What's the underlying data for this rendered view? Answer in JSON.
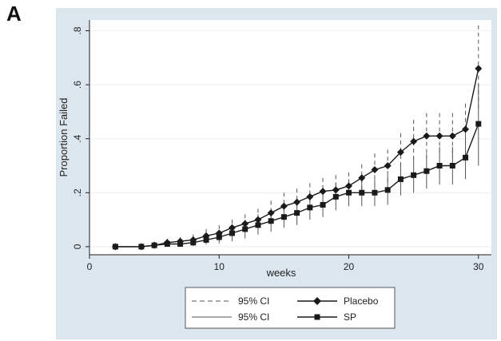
{
  "panel_label": "A",
  "chart_data": {
    "type": "line",
    "title": "",
    "xlabel": "weeks",
    "ylabel": "Proportion Failed",
    "xlim": [
      0,
      31
    ],
    "ylim": [
      -0.03,
      0.84
    ],
    "xticks": [
      0,
      10,
      20,
      30
    ],
    "xtick_labels": [
      "0",
      "10",
      "20",
      "30"
    ],
    "yticks": [
      0,
      0.2,
      0.4,
      0.6,
      0.8
    ],
    "ytick_labels": [
      "0",
      ".2",
      ".4",
      ".6",
      ".8"
    ],
    "grid": "horizontal",
    "legend_placement": "bottom",
    "colors": {
      "outer_background": "#dce6ee",
      "plot_background": "#ffffff",
      "series": "#1a1a1a",
      "ci": "#555555",
      "gridline": "#e8eef3"
    },
    "series": [
      {
        "name": "Placebo",
        "marker": "diamond",
        "points": [
          {
            "x": 2,
            "y": 0.0,
            "lo": 0.0,
            "hi": 0.0
          },
          {
            "x": 4,
            "y": 0.0,
            "lo": 0.0,
            "hi": 0.0
          },
          {
            "x": 5,
            "y": 0.005,
            "lo": 0.0,
            "hi": 0.01
          },
          {
            "x": 6,
            "y": 0.015,
            "lo": 0.0,
            "hi": 0.03
          },
          {
            "x": 7,
            "y": 0.02,
            "lo": 0.005,
            "hi": 0.035
          },
          {
            "x": 8,
            "y": 0.025,
            "lo": 0.008,
            "hi": 0.045
          },
          {
            "x": 9,
            "y": 0.04,
            "lo": 0.015,
            "hi": 0.065
          },
          {
            "x": 10,
            "y": 0.05,
            "lo": 0.02,
            "hi": 0.08
          },
          {
            "x": 11,
            "y": 0.07,
            "lo": 0.035,
            "hi": 0.1
          },
          {
            "x": 12,
            "y": 0.085,
            "lo": 0.05,
            "hi": 0.12
          },
          {
            "x": 13,
            "y": 0.1,
            "lo": 0.06,
            "hi": 0.14
          },
          {
            "x": 14,
            "y": 0.125,
            "lo": 0.085,
            "hi": 0.17
          },
          {
            "x": 15,
            "y": 0.15,
            "lo": 0.105,
            "hi": 0.2
          },
          {
            "x": 16,
            "y": 0.165,
            "lo": 0.12,
            "hi": 0.215
          },
          {
            "x": 17,
            "y": 0.185,
            "lo": 0.135,
            "hi": 0.235
          },
          {
            "x": 18,
            "y": 0.205,
            "lo": 0.155,
            "hi": 0.255
          },
          {
            "x": 19,
            "y": 0.21,
            "lo": 0.16,
            "hi": 0.265
          },
          {
            "x": 20,
            "y": 0.225,
            "lo": 0.175,
            "hi": 0.275
          },
          {
            "x": 21,
            "y": 0.255,
            "lo": 0.2,
            "hi": 0.305
          },
          {
            "x": 22,
            "y": 0.285,
            "lo": 0.225,
            "hi": 0.345
          },
          {
            "x": 23,
            "y": 0.3,
            "lo": 0.24,
            "hi": 0.36
          },
          {
            "x": 24,
            "y": 0.35,
            "lo": 0.28,
            "hi": 0.42
          },
          {
            "x": 25,
            "y": 0.39,
            "lo": 0.31,
            "hi": 0.47
          },
          {
            "x": 26,
            "y": 0.41,
            "lo": 0.33,
            "hi": 0.495
          },
          {
            "x": 27,
            "y": 0.41,
            "lo": 0.33,
            "hi": 0.495
          },
          {
            "x": 28,
            "y": 0.41,
            "lo": 0.33,
            "hi": 0.495
          },
          {
            "x": 29,
            "y": 0.435,
            "lo": 0.34,
            "hi": 0.53
          },
          {
            "x": 30,
            "y": 0.66,
            "lo": 0.5,
            "hi": 0.82
          }
        ]
      },
      {
        "name": "SP",
        "marker": "square",
        "points": [
          {
            "x": 2,
            "y": 0.0,
            "lo": 0.0,
            "hi": 0.0
          },
          {
            "x": 4,
            "y": 0.0,
            "lo": 0.0,
            "hi": 0.0
          },
          {
            "x": 5,
            "y": 0.005,
            "lo": 0.0,
            "hi": 0.01
          },
          {
            "x": 6,
            "y": 0.01,
            "lo": 0.0,
            "hi": 0.02
          },
          {
            "x": 7,
            "y": 0.01,
            "lo": 0.0,
            "hi": 0.02
          },
          {
            "x": 8,
            "y": 0.015,
            "lo": 0.002,
            "hi": 0.03
          },
          {
            "x": 9,
            "y": 0.025,
            "lo": 0.008,
            "hi": 0.045
          },
          {
            "x": 10,
            "y": 0.035,
            "lo": 0.012,
            "hi": 0.06
          },
          {
            "x": 11,
            "y": 0.05,
            "lo": 0.02,
            "hi": 0.08
          },
          {
            "x": 12,
            "y": 0.065,
            "lo": 0.03,
            "hi": 0.1
          },
          {
            "x": 13,
            "y": 0.08,
            "lo": 0.045,
            "hi": 0.12
          },
          {
            "x": 14,
            "y": 0.095,
            "lo": 0.055,
            "hi": 0.135
          },
          {
            "x": 15,
            "y": 0.11,
            "lo": 0.07,
            "hi": 0.155
          },
          {
            "x": 16,
            "y": 0.125,
            "lo": 0.08,
            "hi": 0.17
          },
          {
            "x": 17,
            "y": 0.145,
            "lo": 0.1,
            "hi": 0.195
          },
          {
            "x": 18,
            "y": 0.155,
            "lo": 0.11,
            "hi": 0.205
          },
          {
            "x": 19,
            "y": 0.185,
            "lo": 0.135,
            "hi": 0.235
          },
          {
            "x": 20,
            "y": 0.2,
            "lo": 0.15,
            "hi": 0.25
          },
          {
            "x": 21,
            "y": 0.2,
            "lo": 0.15,
            "hi": 0.25
          },
          {
            "x": 22,
            "y": 0.2,
            "lo": 0.15,
            "hi": 0.25
          },
          {
            "x": 23,
            "y": 0.21,
            "lo": 0.155,
            "hi": 0.265
          },
          {
            "x": 24,
            "y": 0.25,
            "lo": 0.19,
            "hi": 0.31
          },
          {
            "x": 25,
            "y": 0.265,
            "lo": 0.2,
            "hi": 0.33
          },
          {
            "x": 26,
            "y": 0.28,
            "lo": 0.215,
            "hi": 0.345
          },
          {
            "x": 27,
            "y": 0.3,
            "lo": 0.23,
            "hi": 0.37
          },
          {
            "x": 28,
            "y": 0.3,
            "lo": 0.23,
            "hi": 0.37
          },
          {
            "x": 29,
            "y": 0.33,
            "lo": 0.25,
            "hi": 0.41
          },
          {
            "x": 30,
            "y": 0.455,
            "lo": 0.3,
            "hi": 0.6
          }
        ]
      }
    ],
    "legend": [
      {
        "label": "95% CI",
        "style": "dashed-line"
      },
      {
        "label": "Placebo",
        "style": "diamond-line"
      },
      {
        "label": "95% CI",
        "style": "solid-line"
      },
      {
        "label": "SP",
        "style": "square-line"
      }
    ]
  }
}
